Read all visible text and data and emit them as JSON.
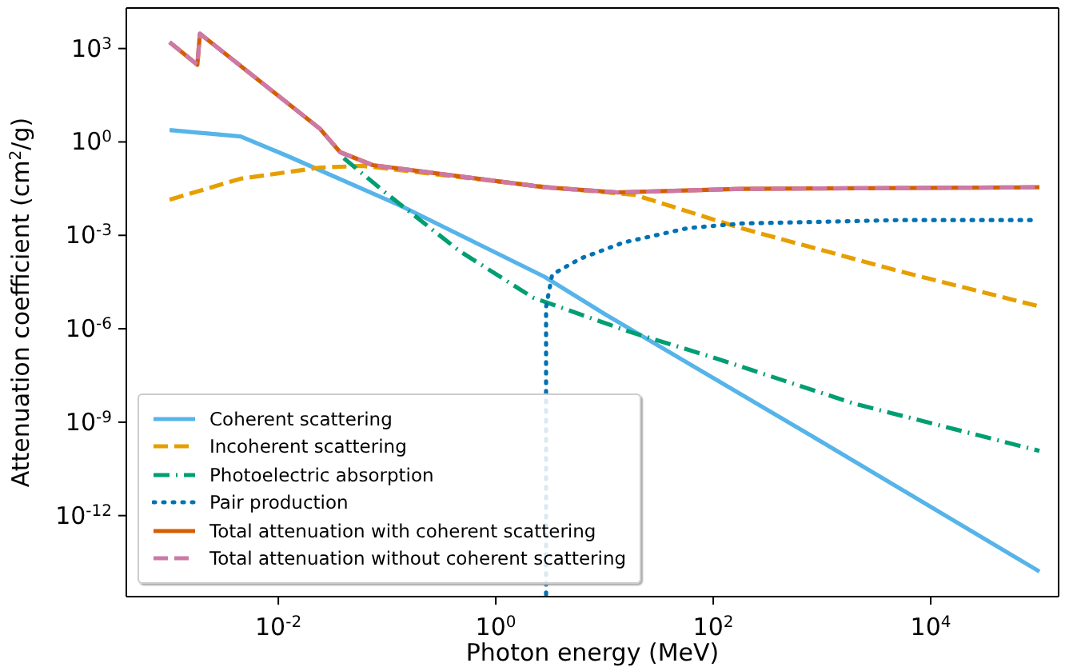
{
  "chart_data": {
    "type": "line",
    "xlabel": "Photon energy (MeV)",
    "ylabel": "Attenuation coefficient (cm$^{2}$/g)",
    "log": "xy",
    "grid": false,
    "legend": "bottom left",
    "marker": "none",
    "xlim": [
      0.0004,
      150000
    ],
    "ylim": [
      2.5e-15,
      20000
    ],
    "xticks": [
      {
        "value": 0.01,
        "label": "10$^{-2}$"
      },
      {
        "value": 1,
        "label": "10$^{0}$"
      },
      {
        "value": 100,
        "label": "10$^{2}$"
      },
      {
        "value": 10000,
        "label": "10$^{4}$"
      }
    ],
    "yticks": [
      {
        "value": 1e-12,
        "label": "10$^{-12}$"
      },
      {
        "value": 1e-09,
        "label": "10$^{-9}$"
      },
      {
        "value": 1e-06,
        "label": "10$^{-6}$"
      },
      {
        "value": 0.001,
        "label": "10$^{-3}$"
      },
      {
        "value": 1,
        "label": "10$^{0}$"
      },
      {
        "value": 1000,
        "label": "10$^{3}$"
      }
    ],
    "series": [
      {
        "name": "Coherent scattering",
        "color": "#56b4e9",
        "line_style": "solid",
        "x": [
          0.001,
          0.0045,
          0.012,
          0.13,
          2.8,
          10,
          1000,
          100000
        ],
        "values": [
          2.4,
          1.5,
          0.36,
          0.0093,
          4.7e-05,
          3e-06,
          2.3e-10,
          1.6e-14
        ]
      },
      {
        "name": "Incoherent scattering",
        "color": "#e69f00",
        "line_style": "dashed",
        "x": [
          0.001,
          0.0045,
          0.024,
          0.06,
          2.8,
          19,
          180,
          5200,
          100000
        ],
        "values": [
          0.014,
          0.066,
          0.15,
          0.17,
          0.036,
          0.02,
          0.0017,
          7e-05,
          5.2e-06
        ]
      },
      {
        "name": "Photoelectric absorption",
        "color": "#009e73",
        "line_style": "dashdot",
        "x": [
          0.04,
          0.093,
          0.46,
          2.2,
          17,
          93,
          1950,
          100000
        ],
        "values": [
          0.3,
          0.026,
          0.00032,
          1e-05,
          8e-07,
          1.3e-07,
          4e-09,
          1.2e-10
        ]
      },
      {
        "name": "Pair production",
        "color": "#0072b2",
        "line_style": "dotted",
        "x": [
          2.9,
          2.9,
          3.3,
          6,
          15,
          58,
          180,
          5200,
          85000
        ],
        "values": [
          3e-15,
          5e-06,
          5.5e-05,
          0.00018,
          0.00059,
          0.0017,
          0.0024,
          0.0031,
          0.0031
        ]
      },
      {
        "name": "Total attenuation with coherent scattering",
        "color": "#d55e00",
        "line_style": "solid",
        "x": [
          0.001,
          0.0018,
          0.0019,
          0.024,
          0.037,
          0.074,
          2.8,
          13,
          180,
          100000
        ],
        "values": [
          1600,
          300,
          3000,
          2.7,
          0.47,
          0.18,
          0.035,
          0.024,
          0.031,
          0.035
        ]
      },
      {
        "name": "Total attenuation without coherent scattering",
        "color": "#cc79a7",
        "line_style": "dashed",
        "x": [
          0.001,
          0.0018,
          0.0019,
          0.024,
          0.037,
          0.074,
          2.8,
          13,
          180,
          100000
        ],
        "values": [
          1600,
          300,
          3000,
          2.7,
          0.47,
          0.18,
          0.035,
          0.024,
          0.031,
          0.035
        ]
      }
    ]
  }
}
